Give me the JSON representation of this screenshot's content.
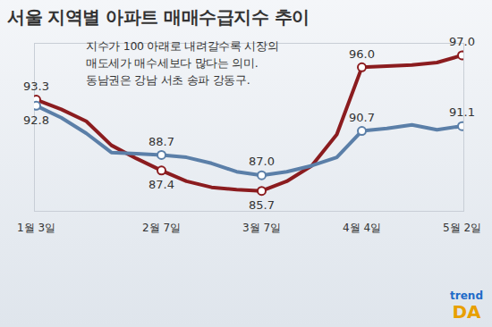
{
  "chart_data": {
    "type": "line",
    "title": "서울 지역별 아파트 매매수급지수 추이",
    "annotation": [
      "지수가 100 아래로 내려갈수록 시장의",
      "매도세가 매수세보다 많다는 의미.",
      "동남권은 강남 서초 송파 강동구."
    ],
    "watermark": [
      "trend",
      "DA"
    ],
    "categories": [
      "1월 3일",
      null,
      null,
      null,
      null,
      "2월 7일",
      null,
      null,
      null,
      "3월 7일",
      null,
      null,
      null,
      "4월 4일",
      null,
      null,
      null,
      "5월 2일"
    ],
    "series": [
      {
        "color": "#8b1c1f",
        "marker": "circle",
        "values": [
          93.3,
          92.5,
          91.5,
          89.5,
          88.4,
          87.4,
          86.5,
          86.0,
          85.8,
          85.7,
          86.5,
          87.8,
          90.4,
          96.0,
          96.1,
          96.2,
          96.4,
          97.0
        ],
        "value_labels": [
          "93.3",
          null,
          null,
          null,
          null,
          "87.4",
          null,
          null,
          null,
          "85.7",
          null,
          null,
          null,
          "96.0",
          null,
          null,
          null,
          "97.0"
        ]
      },
      {
        "color": "#5b7fa8",
        "marker": "circle",
        "values": [
          92.8,
          91.8,
          90.5,
          88.9,
          88.8,
          88.7,
          88.5,
          88.0,
          87.3,
          87.0,
          87.3,
          87.8,
          88.5,
          90.7,
          90.9,
          91.2,
          90.8,
          91.1
        ],
        "value_labels": [
          "92.8",
          null,
          null,
          null,
          null,
          "88.7",
          null,
          null,
          null,
          "87.0",
          null,
          null,
          null,
          "90.7",
          null,
          null,
          null,
          "91.1"
        ]
      }
    ],
    "ylim": [
      84,
      98
    ],
    "tick_labels": "x",
    "grid": false
  }
}
